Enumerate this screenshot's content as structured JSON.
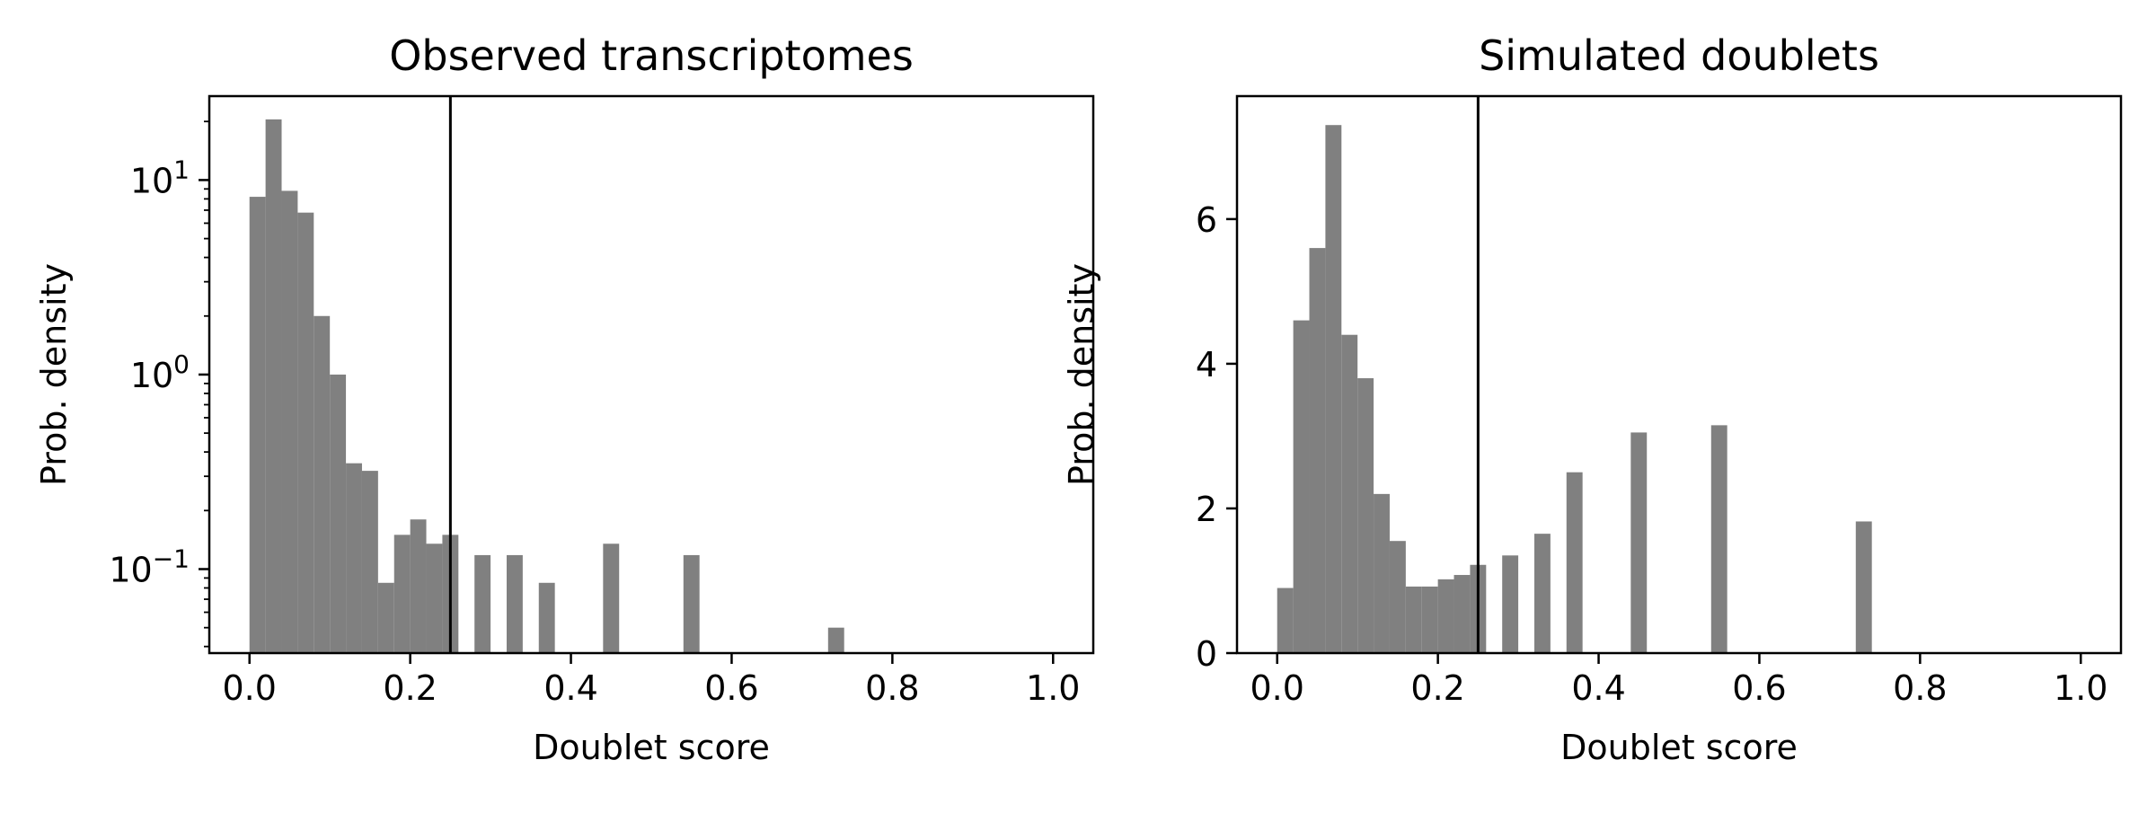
{
  "colors": {
    "bar": "#808080",
    "threshold_line": "#000000",
    "axes": "#000000",
    "background": "#ffffff"
  },
  "chart_data": [
    {
      "type": "bar",
      "title": "Observed transcriptomes",
      "xlabel": "Doublet score",
      "ylabel": "Prob. density",
      "xlim": [
        -0.05,
        1.05
      ],
      "ylim": [
        0.037,
        27
      ],
      "yscale": "log",
      "xticks": [
        0.0,
        0.2,
        0.4,
        0.6,
        0.8,
        1.0
      ],
      "xtick_labels": [
        "0.0",
        "0.2",
        "0.4",
        "0.6",
        "0.8",
        "1.0"
      ],
      "yticks": [
        0.1,
        1,
        10
      ],
      "ytick_labels": [
        {
          "base": "10",
          "exp": "−1"
        },
        {
          "base": "10",
          "exp": "0"
        },
        {
          "base": "10",
          "exp": "1"
        }
      ],
      "grid": false,
      "threshold": 0.25,
      "bin_width": 0.02,
      "bins": [
        {
          "x": 0.0,
          "value": 8.2
        },
        {
          "x": 0.02,
          "value": 20.5
        },
        {
          "x": 0.04,
          "value": 8.8
        },
        {
          "x": 0.06,
          "value": 6.8
        },
        {
          "x": 0.08,
          "value": 2.0
        },
        {
          "x": 0.1,
          "value": 1.0
        },
        {
          "x": 0.12,
          "value": 0.35
        },
        {
          "x": 0.14,
          "value": 0.32
        },
        {
          "x": 0.16,
          "value": 0.085
        },
        {
          "x": 0.18,
          "value": 0.15
        },
        {
          "x": 0.2,
          "value": 0.18
        },
        {
          "x": 0.22,
          "value": 0.135
        },
        {
          "x": 0.24,
          "value": 0.15
        },
        {
          "x": 0.28,
          "value": 0.118
        },
        {
          "x": 0.32,
          "value": 0.118
        },
        {
          "x": 0.36,
          "value": 0.085
        },
        {
          "x": 0.44,
          "value": 0.135
        },
        {
          "x": 0.54,
          "value": 0.118
        },
        {
          "x": 0.72,
          "value": 0.05
        }
      ]
    },
    {
      "type": "bar",
      "title": "Simulated doublets",
      "xlabel": "Doublet score",
      "ylabel": "Prob. density",
      "xlim": [
        -0.05,
        1.05
      ],
      "ylim": [
        0,
        7.7
      ],
      "yscale": "linear",
      "xticks": [
        0.0,
        0.2,
        0.4,
        0.6,
        0.8,
        1.0
      ],
      "xtick_labels": [
        "0.0",
        "0.2",
        "0.4",
        "0.6",
        "0.8",
        "1.0"
      ],
      "yticks": [
        0,
        2,
        4,
        6
      ],
      "ytick_labels": [
        "0",
        "2",
        "4",
        "6"
      ],
      "grid": false,
      "threshold": 0.25,
      "bin_width": 0.02,
      "bins": [
        {
          "x": 0.0,
          "value": 0.9
        },
        {
          "x": 0.02,
          "value": 4.6
        },
        {
          "x": 0.04,
          "value": 5.6
        },
        {
          "x": 0.06,
          "value": 7.3
        },
        {
          "x": 0.08,
          "value": 4.4
        },
        {
          "x": 0.1,
          "value": 3.8
        },
        {
          "x": 0.12,
          "value": 2.2
        },
        {
          "x": 0.14,
          "value": 1.55
        },
        {
          "x": 0.16,
          "value": 0.92
        },
        {
          "x": 0.18,
          "value": 0.92
        },
        {
          "x": 0.2,
          "value": 1.02
        },
        {
          "x": 0.22,
          "value": 1.08
        },
        {
          "x": 0.24,
          "value": 1.22
        },
        {
          "x": 0.28,
          "value": 1.35
        },
        {
          "x": 0.32,
          "value": 1.65
        },
        {
          "x": 0.36,
          "value": 2.5
        },
        {
          "x": 0.44,
          "value": 3.05
        },
        {
          "x": 0.54,
          "value": 3.15
        },
        {
          "x": 0.72,
          "value": 1.82
        }
      ]
    }
  ]
}
